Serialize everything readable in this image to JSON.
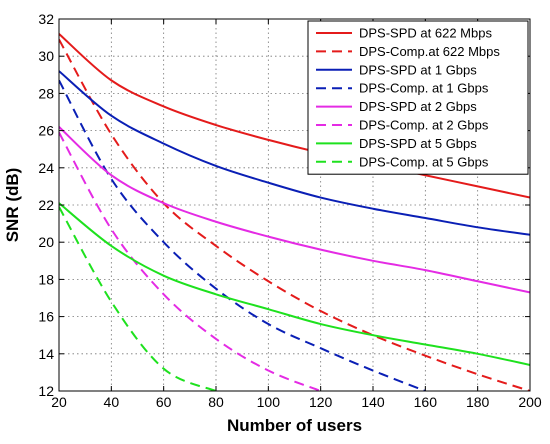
{
  "chart_data": {
    "type": "line",
    "title": "",
    "xlabel": "Number of users",
    "ylabel": "SNR (dB)",
    "xlim": [
      20,
      200
    ],
    "ylim": [
      12,
      32
    ],
    "xticks": [
      20,
      40,
      60,
      80,
      100,
      120,
      140,
      160,
      180,
      200
    ],
    "yticks": [
      12,
      14,
      16,
      18,
      20,
      22,
      24,
      26,
      28,
      30,
      32
    ],
    "grid": true,
    "legend_position": "top-right",
    "x": [
      20,
      40,
      60,
      80,
      100,
      120,
      140,
      160,
      180,
      200
    ],
    "series": [
      {
        "name": "DPS-SPD at 622 Mbps",
        "color": "#e41b1b",
        "style": "solid",
        "values": [
          31.2,
          28.7,
          27.3,
          26.3,
          25.5,
          24.8,
          24.2,
          23.6,
          23.0,
          22.4
        ]
      },
      {
        "name": "DPS-Comp.at 622 Mbps",
        "color": "#e41b1b",
        "style": "dashed",
        "values": [
          30.9,
          25.8,
          22.1,
          19.8,
          17.9,
          16.3,
          15.0,
          13.9,
          12.9,
          12.0
        ]
      },
      {
        "name": "DPS-SPD at 1 Gbps",
        "color": "#0a1fb5",
        "style": "solid",
        "values": [
          29.2,
          26.8,
          25.3,
          24.1,
          23.2,
          22.4,
          21.8,
          21.3,
          20.8,
          20.4
        ]
      },
      {
        "name": "DPS-Comp. at 1 Gbps",
        "color": "#0a1fb5",
        "style": "dashed",
        "values": [
          28.7,
          23.4,
          20.0,
          17.5,
          15.6,
          14.3,
          13.1,
          12.0,
          null,
          null
        ]
      },
      {
        "name": "DPS-SPD at 2 Gbps",
        "color": "#e42be4",
        "style": "solid",
        "values": [
          26.2,
          23.6,
          22.1,
          21.1,
          20.3,
          19.6,
          19.0,
          18.5,
          17.9,
          17.3
        ]
      },
      {
        "name": "DPS-Comp. at 2 Gbps",
        "color": "#e42be4",
        "style": "dashed",
        "values": [
          25.9,
          20.7,
          17.2,
          14.8,
          13.1,
          12.0,
          null,
          null,
          null,
          null
        ]
      },
      {
        "name": "DPS-SPD at 5 Gbps",
        "color": "#1ee11e",
        "style": "solid",
        "values": [
          22.1,
          19.8,
          18.2,
          17.2,
          16.4,
          15.6,
          15.0,
          14.5,
          14.0,
          13.4
        ]
      },
      {
        "name": "DPS-Comp. at 5 Gbps",
        "color": "#1ee11e",
        "style": "dashed",
        "values": [
          21.9,
          16.8,
          13.2,
          12.0,
          null,
          null,
          null,
          null,
          null,
          null
        ]
      }
    ]
  }
}
